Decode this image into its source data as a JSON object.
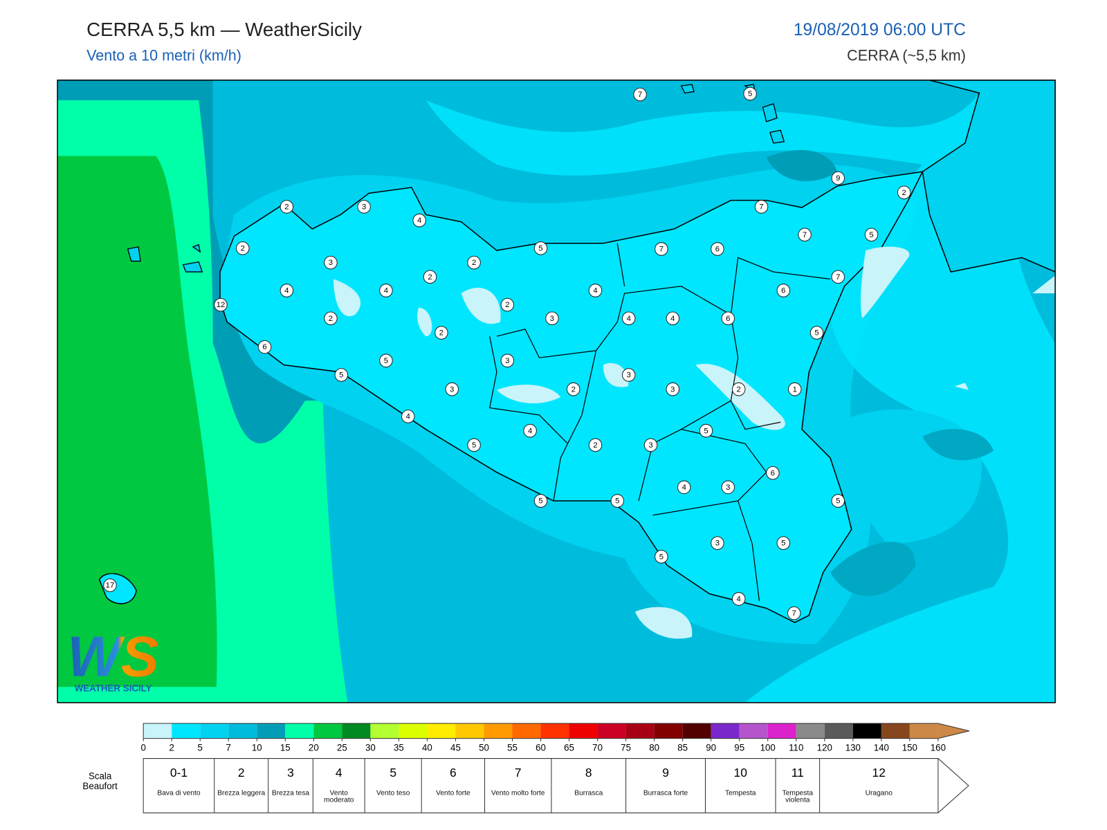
{
  "header": {
    "title": "CERRA 5,5 km — WeatherSicily",
    "subtitle": "Vento a 10 metri (km/h)",
    "date": "19/08/2019 06:00 UTC",
    "source": "CERRA (~5,5 km)"
  },
  "logo": {
    "mark": "WS",
    "text": "WEATHER SICILY"
  },
  "stations": [
    7,
    5,
    9,
    2,
    2,
    3,
    4,
    7,
    7,
    5,
    2,
    5,
    7,
    6,
    3,
    2,
    2,
    7,
    4,
    4,
    4,
    6,
    12,
    2,
    2,
    3,
    4,
    4,
    6,
    2,
    5,
    6,
    5,
    3,
    5,
    3,
    3,
    2,
    3,
    2,
    1,
    4,
    4,
    5,
    5,
    2,
    3,
    6,
    4,
    3,
    5,
    5,
    5,
    3,
    5,
    5,
    17,
    4,
    7
  ],
  "colorbar": {
    "ticks": [
      0,
      2,
      5,
      7,
      10,
      15,
      20,
      25,
      30,
      35,
      40,
      45,
      50,
      55,
      60,
      65,
      70,
      75,
      80,
      85,
      90,
      95,
      100,
      110,
      120,
      130,
      140,
      150,
      160
    ],
    "colors": [
      "#c8f4fa",
      "#00e6ff",
      "#00d2f0",
      "#00bcdc",
      "#009db6",
      "#00ffa8",
      "#00c840",
      "#008a22",
      "#b4ff32",
      "#dcff00",
      "#ffec00",
      "#ffc800",
      "#ff9a00",
      "#ff6a00",
      "#ff3200",
      "#ee0000",
      "#cc0024",
      "#a80014",
      "#820000",
      "#520000",
      "#7a28cc",
      "#b455cc",
      "#dc22cc",
      "#8a8a8a",
      "#5a5a5a",
      "#000000",
      "#86461e",
      "#cc8846"
    ]
  },
  "beaufort": {
    "label": "Scala Beaufort",
    "levels": [
      {
        "force": "0-1",
        "name": "Bava di vento"
      },
      {
        "force": "2",
        "name": "Brezza leggera"
      },
      {
        "force": "3",
        "name": "Brezza tesa"
      },
      {
        "force": "4",
        "name": "Vento moderato"
      },
      {
        "force": "5",
        "name": "Vento teso"
      },
      {
        "force": "6",
        "name": "Vento forte"
      },
      {
        "force": "7",
        "name": "Vento molto forte"
      },
      {
        "force": "8",
        "name": "Burrasca"
      },
      {
        "force": "9",
        "name": "Burrasca forte"
      },
      {
        "force": "10",
        "name": "Tempesta"
      },
      {
        "force": "11",
        "name": "Tempesta violenta"
      },
      {
        "force": "12",
        "name": "Uragano"
      }
    ]
  }
}
